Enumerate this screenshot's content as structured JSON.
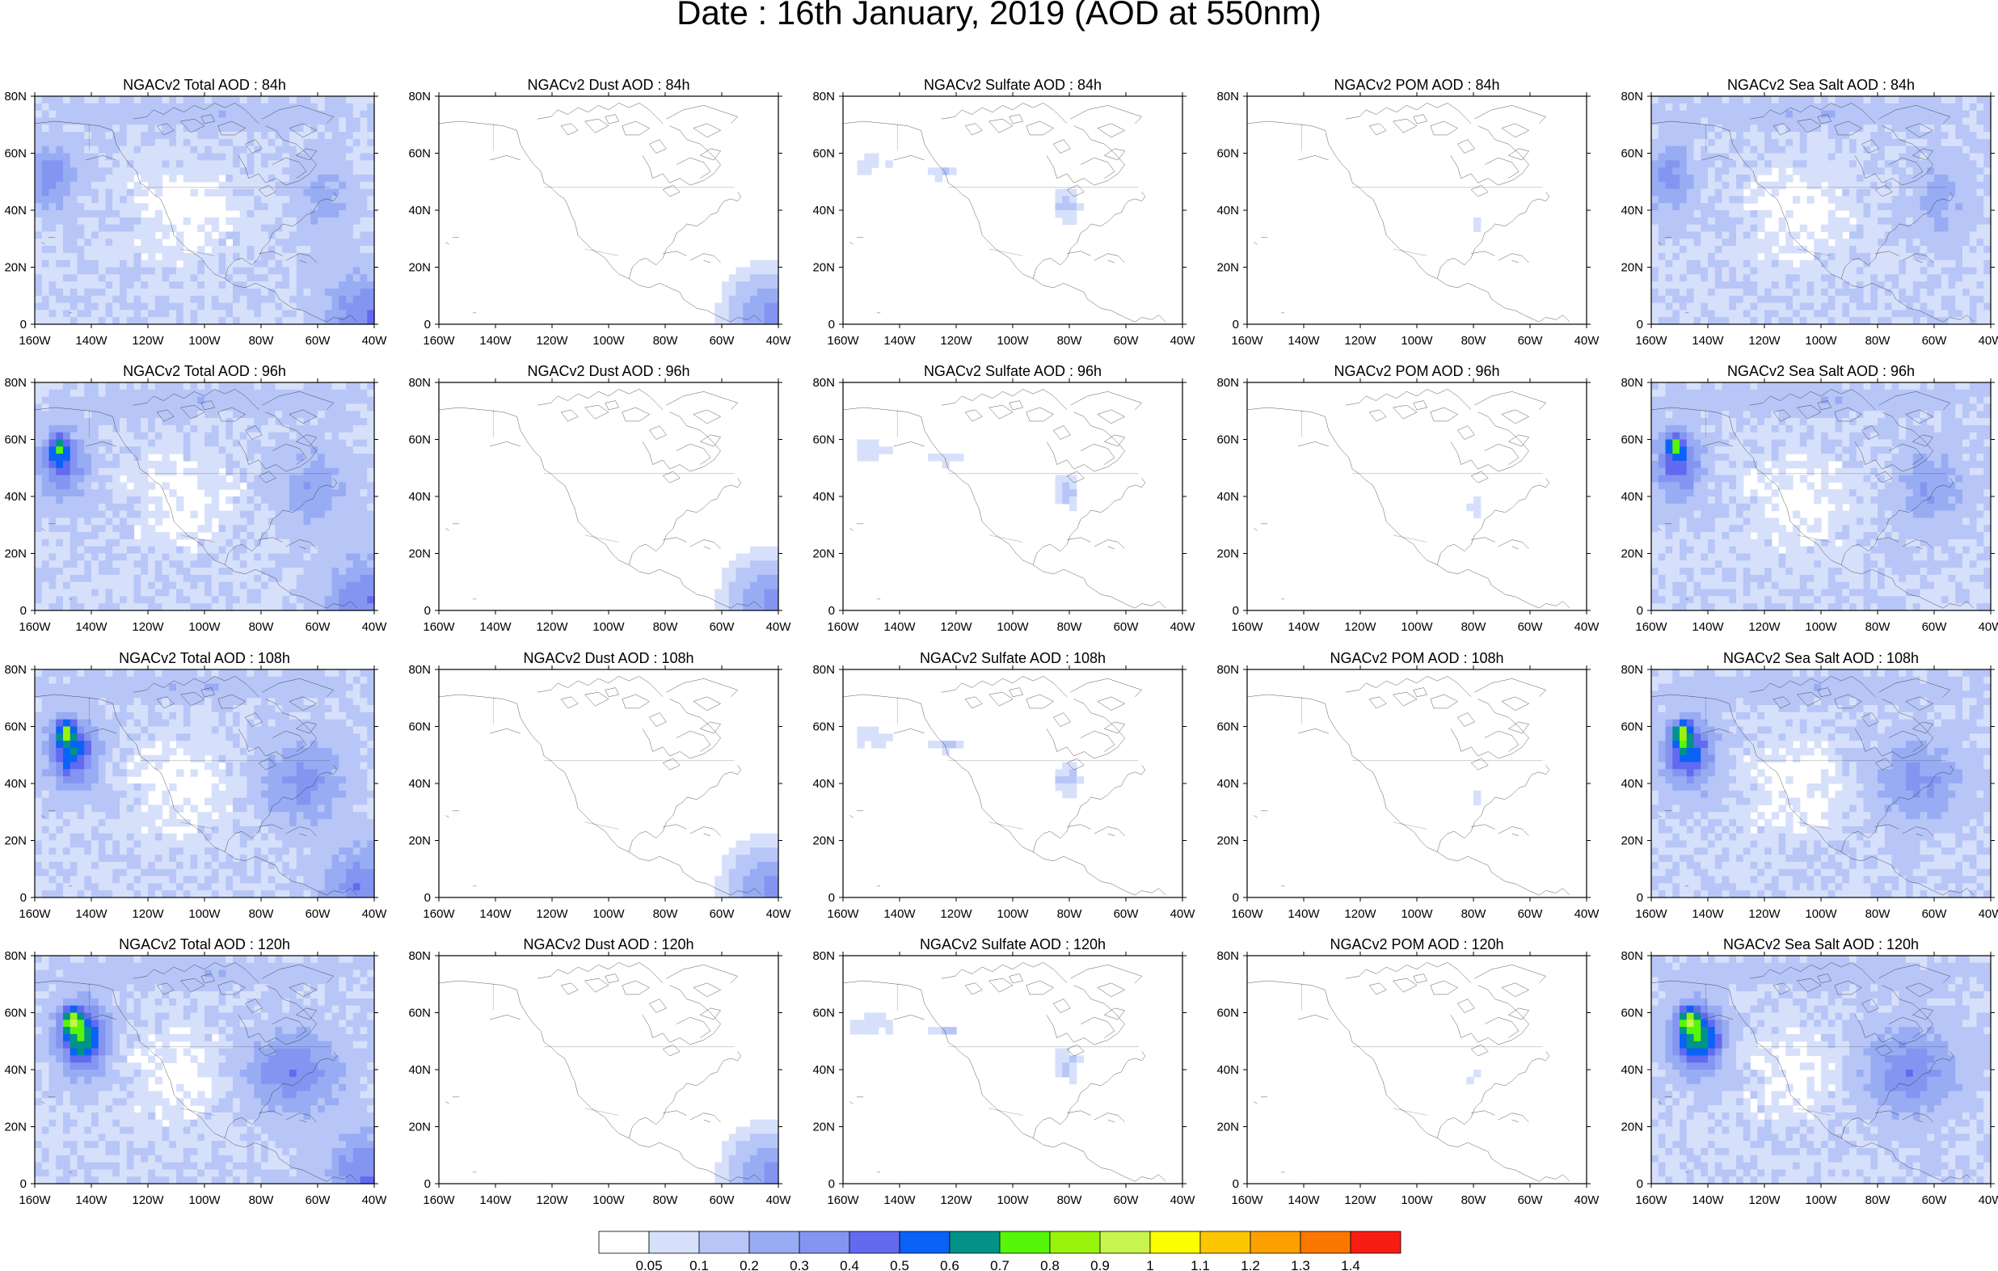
{
  "title": "Date : 16th January, 2019 (AOD at 550nm)",
  "panels": [
    {
      "title": "NGACv2 Total AOD : 84h",
      "field": "total"
    },
    {
      "title": "NGACv2 Dust AOD : 84h",
      "field": "dust"
    },
    {
      "title": "NGACv2 Sulfate AOD : 84h",
      "field": "sulfate"
    },
    {
      "title": "NGACv2 POM AOD : 84h",
      "field": "pom"
    },
    {
      "title": "NGACv2 Sea Salt AOD : 84h",
      "field": "seasalt"
    },
    {
      "title": "NGACv2 Total AOD : 96h",
      "field": "total"
    },
    {
      "title": "NGACv2 Dust AOD : 96h",
      "field": "dust"
    },
    {
      "title": "NGACv2 Sulfate AOD : 96h",
      "field": "sulfate"
    },
    {
      "title": "NGACv2 POM AOD : 96h",
      "field": "pom"
    },
    {
      "title": "NGACv2 Sea Salt AOD : 96h",
      "field": "seasalt"
    },
    {
      "title": "NGACv2 Total AOD : 108h",
      "field": "total"
    },
    {
      "title": "NGACv2 Dust AOD : 108h",
      "field": "dust"
    },
    {
      "title": "NGACv2 Sulfate AOD : 108h",
      "field": "sulfate"
    },
    {
      "title": "NGACv2 POM AOD : 108h",
      "field": "pom"
    },
    {
      "title": "NGACv2 Sea Salt AOD : 108h",
      "field": "seasalt"
    },
    {
      "title": "NGACv2 Total AOD : 120h",
      "field": "total"
    },
    {
      "title": "NGACv2 Dust AOD : 120h",
      "field": "dust"
    },
    {
      "title": "NGACv2 Sulfate AOD : 120h",
      "field": "sulfate"
    },
    {
      "title": "NGACv2 POM AOD : 120h",
      "field": "pom"
    },
    {
      "title": "NGACv2 Sea Salt  AOD : 120h",
      "field": "seasalt"
    }
  ],
  "axes": {
    "lon_labels": [
      "160W",
      "140W",
      "120W",
      "100W",
      "80W",
      "60W",
      "40W"
    ],
    "lat_labels": [
      "0",
      "20N",
      "40N",
      "60N",
      "80N"
    ]
  },
  "colorbar": {
    "colors": [
      "#ffffff",
      "#d7e0fb",
      "#b7c6f7",
      "#98acf4",
      "#8495f1",
      "#636af0",
      "#0a62f6",
      "#03928a",
      "#55f60a",
      "#97f40a",
      "#c7f44f",
      "#fcfc03",
      "#fcc602",
      "#fca002",
      "#fa7700",
      "#f91c12"
    ],
    "labels": [
      "0.05",
      "0.1",
      "0.2",
      "0.3",
      "0.4",
      "0.5",
      "0.6",
      "0.7",
      "0.8",
      "0.9",
      "1",
      "1.1",
      "1.2",
      "1.3",
      "1.4"
    ]
  }
}
